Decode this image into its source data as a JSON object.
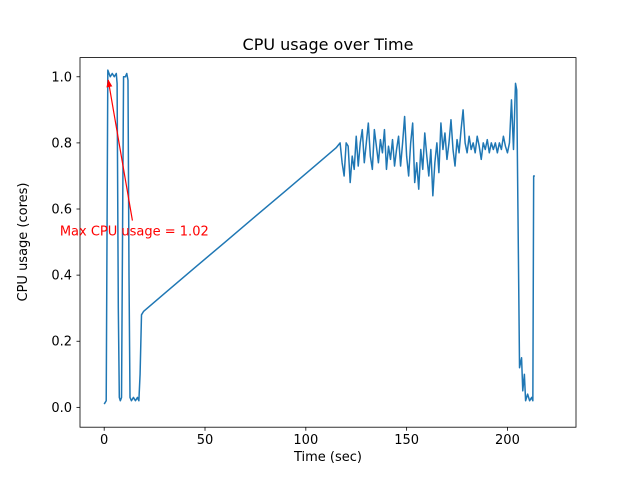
{
  "figure": {
    "title": "CPU usage over Time",
    "xlabel": "Time (sec)",
    "ylabel": "CPU usage (cores)"
  },
  "chart_data": {
    "type": "line",
    "title": "CPU usage over Time",
    "xlabel": "Time (sec)",
    "ylabel": "CPU usage (cores)",
    "xlim": [
      -12,
      234
    ],
    "ylim": [
      -0.06,
      1.058
    ],
    "xticks": [
      0,
      50,
      100,
      150,
      200
    ],
    "yticks": [
      0.0,
      0.2,
      0.4,
      0.6,
      0.8,
      1.0
    ],
    "grid": false,
    "legend_position": "none",
    "line_color": "#1f77b4",
    "line_width": 1.5,
    "annotation": {
      "text": "Max CPU usage = 1.02",
      "color": "#ff0000",
      "text_xy": [
        -22,
        0.52
      ],
      "arrow_start_xy": [
        14,
        0.565
      ],
      "arrow_tip_xy": [
        2,
        0.99
      ],
      "max_value": 1.02
    },
    "points": [
      [
        0,
        0.01
      ],
      [
        1,
        0.02
      ],
      [
        1.8,
        1.02
      ],
      [
        3,
        1.0
      ],
      [
        4,
        1.01
      ],
      [
        5,
        1.0
      ],
      [
        6,
        1.01
      ],
      [
        6.4,
        0.98
      ],
      [
        7,
        0.3
      ],
      [
        7.5,
        0.03
      ],
      [
        8,
        0.02
      ],
      [
        8.6,
        0.03
      ],
      [
        9.2,
        0.62
      ],
      [
        9.6,
        1.0
      ],
      [
        10.5,
        1.0
      ],
      [
        11.2,
        1.01
      ],
      [
        11.8,
        0.99
      ],
      [
        12.3,
        0.4
      ],
      [
        12.8,
        0.03
      ],
      [
        13.5,
        0.02
      ],
      [
        14.5,
        0.03
      ],
      [
        15.5,
        0.02
      ],
      [
        16.5,
        0.03
      ],
      [
        17.2,
        0.02
      ],
      [
        17.8,
        0.1
      ],
      [
        18.5,
        0.28
      ],
      [
        19.5,
        0.29
      ],
      [
        30,
        0.345
      ],
      [
        45,
        0.423
      ],
      [
        60,
        0.5
      ],
      [
        75,
        0.578
      ],
      [
        90,
        0.655
      ],
      [
        105,
        0.733
      ],
      [
        115,
        0.785
      ],
      [
        117,
        0.8
      ],
      [
        118,
        0.74
      ],
      [
        119,
        0.7
      ],
      [
        120,
        0.8
      ],
      [
        121,
        0.79
      ],
      [
        122,
        0.68
      ],
      [
        123,
        0.76
      ],
      [
        124,
        0.72
      ],
      [
        125,
        0.82
      ],
      [
        126,
        0.73
      ],
      [
        127,
        0.8
      ],
      [
        128,
        0.84
      ],
      [
        129,
        0.74
      ],
      [
        130,
        0.8
      ],
      [
        131,
        0.86
      ],
      [
        132,
        0.76
      ],
      [
        133,
        0.72
      ],
      [
        134,
        0.84
      ],
      [
        135,
        0.79
      ],
      [
        136,
        0.74
      ],
      [
        137,
        0.81
      ],
      [
        138,
        0.77
      ],
      [
        139,
        0.84
      ],
      [
        140,
        0.72
      ],
      [
        141,
        0.79
      ],
      [
        142,
        0.75
      ],
      [
        143,
        0.81
      ],
      [
        144,
        0.73
      ],
      [
        145,
        0.78
      ],
      [
        146,
        0.82
      ],
      [
        147,
        0.73
      ],
      [
        148,
        0.8
      ],
      [
        149,
        0.88
      ],
      [
        150,
        0.76
      ],
      [
        151,
        0.7
      ],
      [
        152,
        0.8
      ],
      [
        153,
        0.86
      ],
      [
        154,
        0.68
      ],
      [
        155,
        0.74
      ],
      [
        156,
        0.66
      ],
      [
        157,
        0.78
      ],
      [
        158,
        0.72
      ],
      [
        159,
        0.83
      ],
      [
        160,
        0.76
      ],
      [
        161,
        0.7
      ],
      [
        162,
        0.78
      ],
      [
        163,
        0.64
      ],
      [
        164,
        0.74
      ],
      [
        165,
        0.8
      ],
      [
        166,
        0.71
      ],
      [
        167,
        0.86
      ],
      [
        168,
        0.78
      ],
      [
        169,
        0.83
      ],
      [
        170,
        0.75
      ],
      [
        171,
        0.8
      ],
      [
        172,
        0.87
      ],
      [
        173,
        0.78
      ],
      [
        174,
        0.73
      ],
      [
        175,
        0.81
      ],
      [
        176,
        0.77
      ],
      [
        177,
        0.84
      ],
      [
        178,
        0.9
      ],
      [
        179,
        0.8
      ],
      [
        180,
        0.77
      ],
      [
        181,
        0.82
      ],
      [
        182,
        0.78
      ],
      [
        183,
        0.8
      ],
      [
        184,
        0.77
      ],
      [
        185,
        0.82
      ],
      [
        186,
        0.79
      ],
      [
        187,
        0.75
      ],
      [
        188,
        0.8
      ],
      [
        189,
        0.78
      ],
      [
        190,
        0.81
      ],
      [
        191,
        0.77
      ],
      [
        192,
        0.8
      ],
      [
        193,
        0.78
      ],
      [
        194,
        0.8
      ],
      [
        195,
        0.77
      ],
      [
        196,
        0.8
      ],
      [
        197,
        0.78
      ],
      [
        198,
        0.82
      ],
      [
        199,
        0.79
      ],
      [
        200,
        0.77
      ],
      [
        201,
        0.8
      ],
      [
        202,
        0.93
      ],
      [
        203,
        0.78
      ],
      [
        204,
        0.98
      ],
      [
        204.6,
        0.96
      ],
      [
        205.2,
        0.6
      ],
      [
        206,
        0.12
      ],
      [
        207,
        0.15
      ],
      [
        207.6,
        0.05
      ],
      [
        208.4,
        0.1
      ],
      [
        209,
        0.02
      ],
      [
        210,
        0.04
      ],
      [
        211,
        0.02
      ],
      [
        212,
        0.03
      ],
      [
        212.6,
        0.02
      ],
      [
        213,
        0.7
      ],
      [
        213.6,
        0.7
      ]
    ]
  }
}
